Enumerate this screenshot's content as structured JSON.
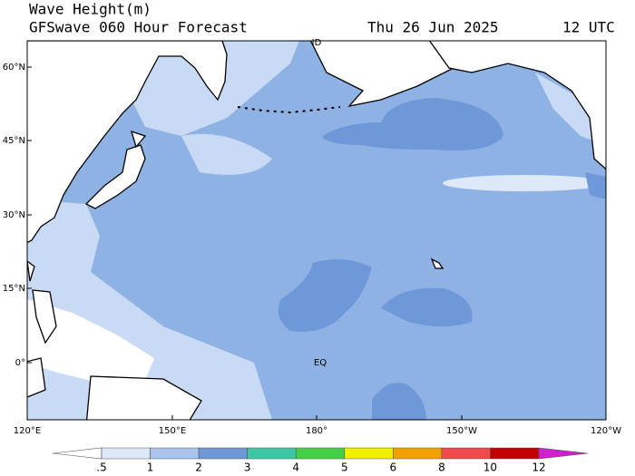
{
  "header": {
    "title": "Wave Height(m)",
    "subtitle": "GFSwave 060 Hour Forecast",
    "date": "Thu 26 Jun 2025",
    "time": "12 UTC"
  },
  "map": {
    "lat_labels": [
      "60°N",
      "45°N",
      "30°N",
      "15°N",
      "0°"
    ],
    "lon_labels": [
      "120°E",
      "150°E",
      "180°",
      "150°W",
      "120°W"
    ],
    "dateline_label": "ID",
    "equator_label": "EQ"
  },
  "colorbar": {
    "labels": [
      ".5",
      "1",
      "2",
      "3",
      "4",
      "5",
      "6",
      "8",
      "10",
      "12"
    ],
    "colors": [
      "#ffffff",
      "#dde9f9",
      "#a9c5ee",
      "#6f98d8",
      "#3cc8a2",
      "#44d044",
      "#f0f000",
      "#f0a000",
      "#f04a4a",
      "#c40000",
      "#d020d0"
    ]
  }
}
